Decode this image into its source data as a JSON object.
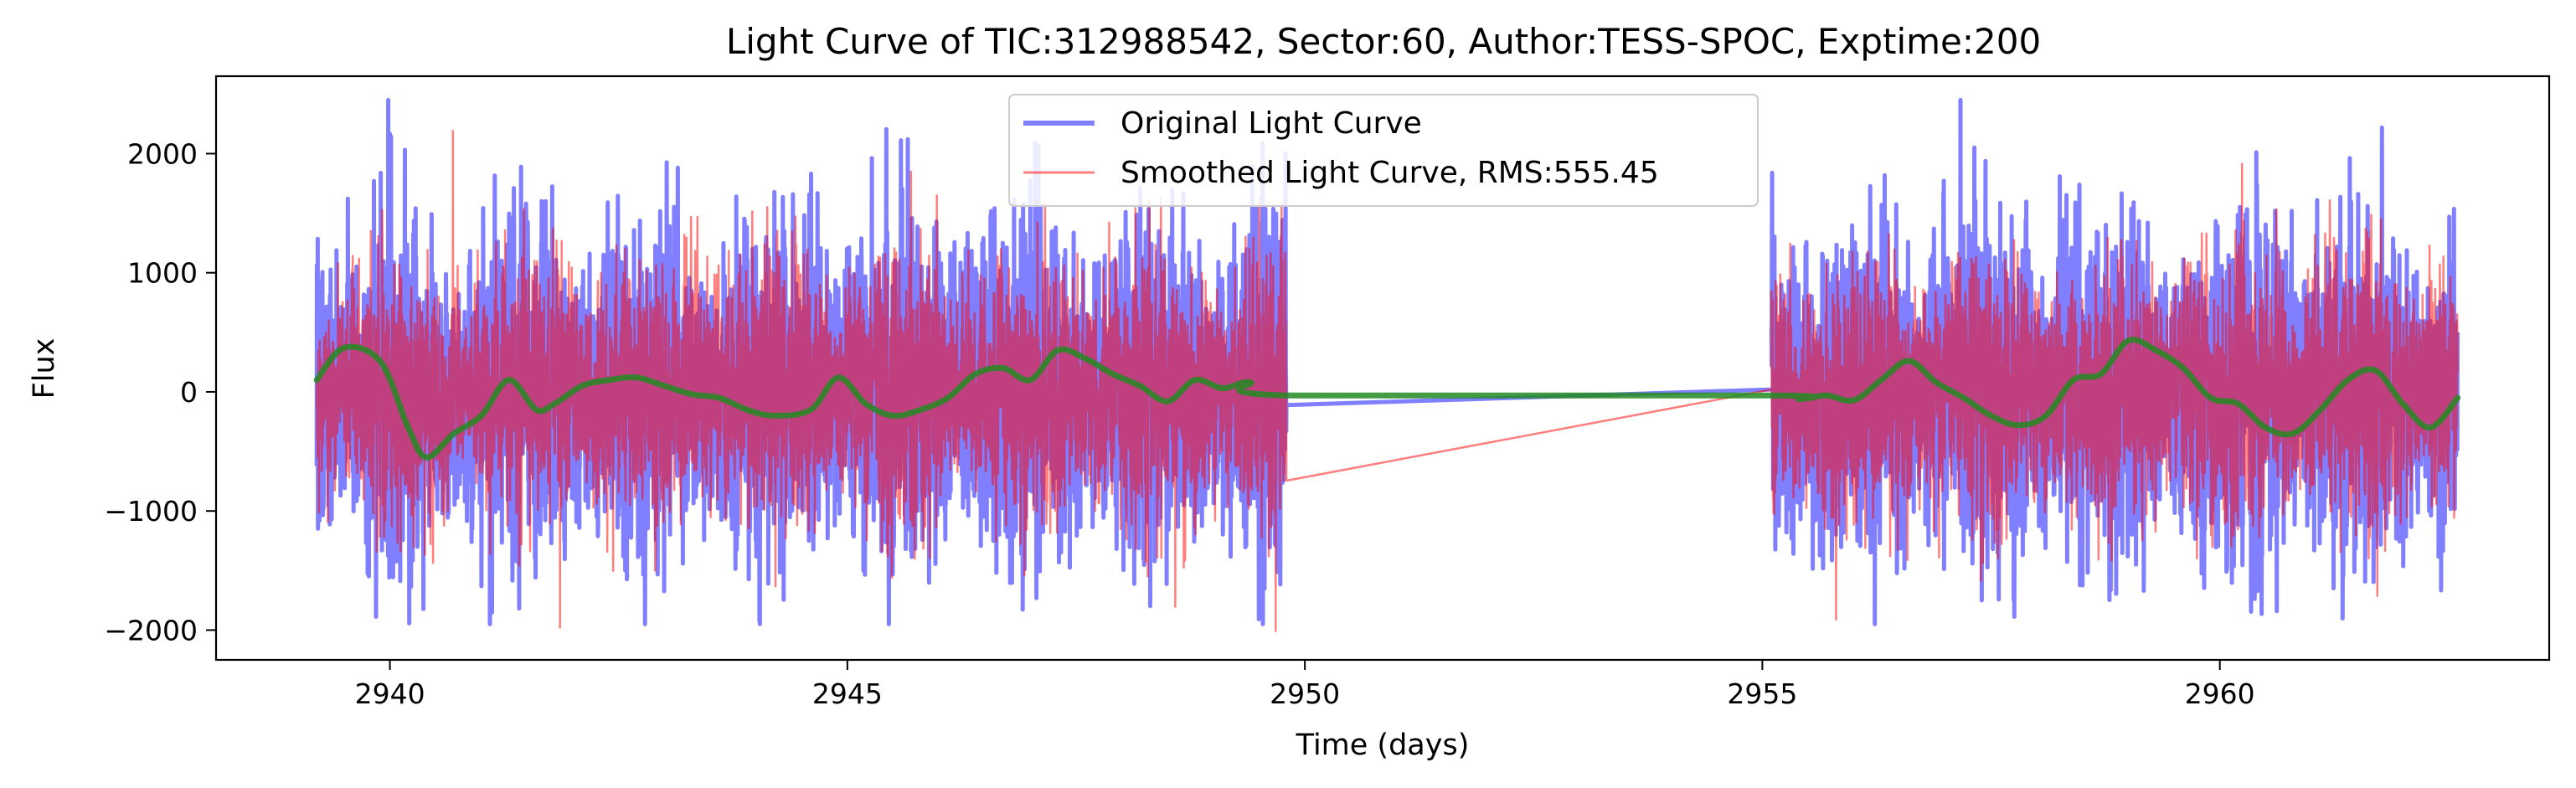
{
  "chart_data": {
    "type": "line",
    "title": "Light Curve of TIC:312988542, Sector:60, Author:TESS-SPOC, Exptime:200",
    "xlabel": "Time (days)",
    "ylabel": "Flux",
    "xlim": [
      2938.1,
      2963.6
    ],
    "ylim": [
      -2250,
      2650
    ],
    "x_ticks": [
      2940,
      2945,
      2950,
      2955,
      2960
    ],
    "y_ticks": [
      -2000,
      -1000,
      0,
      1000,
      2000
    ],
    "y_tick_labels": [
      "−2000",
      "−1000",
      "0",
      "1000",
      "2000"
    ],
    "grid": false,
    "legend": {
      "placement": "top-center"
    },
    "segments": [
      [
        2939.2,
        2949.8
      ],
      [
        2955.1,
        2962.6
      ]
    ],
    "series": [
      {
        "name": "Original Light Curve",
        "color": "#0000ff",
        "opacity": 0.5,
        "amplitude_rms": 600,
        "min": -1950,
        "max": 2450
      },
      {
        "name": "Smoothed Light Curve, RMS:555.45",
        "color": "#ff0000",
        "opacity": 0.5,
        "amplitude_rms": 555.45,
        "min": -2030,
        "max": 2400
      },
      {
        "name": "",
        "color": "#228b22",
        "opacity": 0.85,
        "x": [
          2939.2,
          2939.5,
          2939.9,
          2940.2,
          2940.4,
          2940.7,
          2941.0,
          2941.3,
          2941.6,
          2941.8,
          2942.1,
          2942.4,
          2942.7,
          2943.0,
          2943.3,
          2943.6,
          2943.9,
          2944.2,
          2944.6,
          2944.9,
          2945.2,
          2945.5,
          2945.8,
          2946.1,
          2946.4,
          2946.7,
          2947.0,
          2947.3,
          2947.6,
          2947.9,
          2948.2,
          2948.5,
          2948.8,
          2949.1,
          2949.4,
          2949.8,
          2955.1,
          2955.4,
          2955.7,
          2956.0,
          2956.3,
          2956.6,
          2956.9,
          2957.2,
          2957.5,
          2957.8,
          2958.1,
          2958.4,
          2958.7,
          2959.0,
          2959.3,
          2959.6,
          2959.9,
          2960.2,
          2960.5,
          2960.8,
          2961.1,
          2961.4,
          2961.7,
          2962.0,
          2962.3,
          2962.6
        ],
        "y": [
          100,
          370,
          250,
          -300,
          -550,
          -350,
          -200,
          100,
          -150,
          -100,
          50,
          100,
          120,
          50,
          -20,
          -50,
          -150,
          -200,
          -150,
          120,
          -100,
          -200,
          -150,
          -50,
          150,
          200,
          100,
          350,
          280,
          150,
          50,
          -80,
          100,
          30,
          80,
          -30,
          -30,
          -60,
          -30,
          -70,
          100,
          260,
          80,
          -50,
          -200,
          -280,
          -200,
          100,
          150,
          430,
          350,
          200,
          -50,
          -100,
          -300,
          -350,
          -150,
          100,
          180,
          -100,
          -300,
          -50
        ]
      }
    ]
  }
}
